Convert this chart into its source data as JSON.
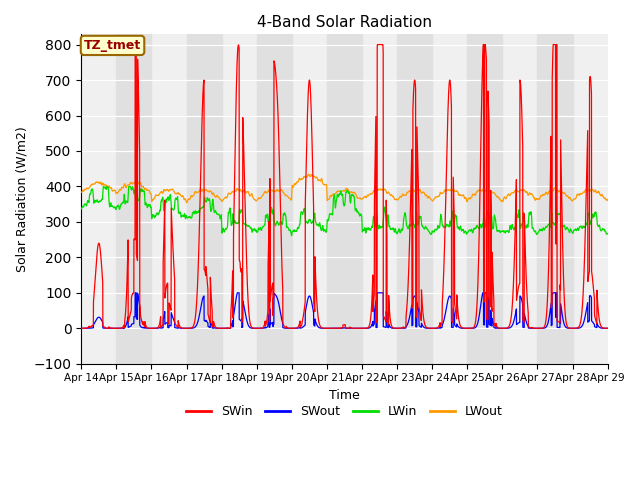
{
  "title": "4-Band Solar Radiation",
  "xlabel": "Time",
  "ylabel": "Solar Radiation (W/m2)",
  "ylim": [
    -100,
    830
  ],
  "yticks": [
    -100,
    0,
    100,
    200,
    300,
    400,
    500,
    600,
    700,
    800
  ],
  "x_labels": [
    "Apr 14",
    "Apr 15",
    "Apr 16",
    "Apr 17",
    "Apr 18",
    "Apr 19",
    "Apr 20",
    "Apr 21",
    "Apr 22",
    "Apr 23",
    "Apr 24",
    "Apr 25",
    "Apr 26",
    "Apr 27",
    "Apr 28",
    "Apr 29"
  ],
  "legend_entries": [
    "SWin",
    "SWout",
    "LWin",
    "LWout"
  ],
  "legend_colors": [
    "#ff0000",
    "#0000ff",
    "#00dd00",
    "#ff9900"
  ],
  "annotation_label": "TZ_tmet",
  "bg_color": "#ffffff",
  "plot_bg_color": "#f0f0f0",
  "stripe_color": "#e0e0e0",
  "line_colors": {
    "SWin": "#ff0000",
    "SWout": "#0000ff",
    "LWin": "#00dd00",
    "LWout": "#ff9900"
  },
  "num_days": 15,
  "samples_per_day": 288
}
